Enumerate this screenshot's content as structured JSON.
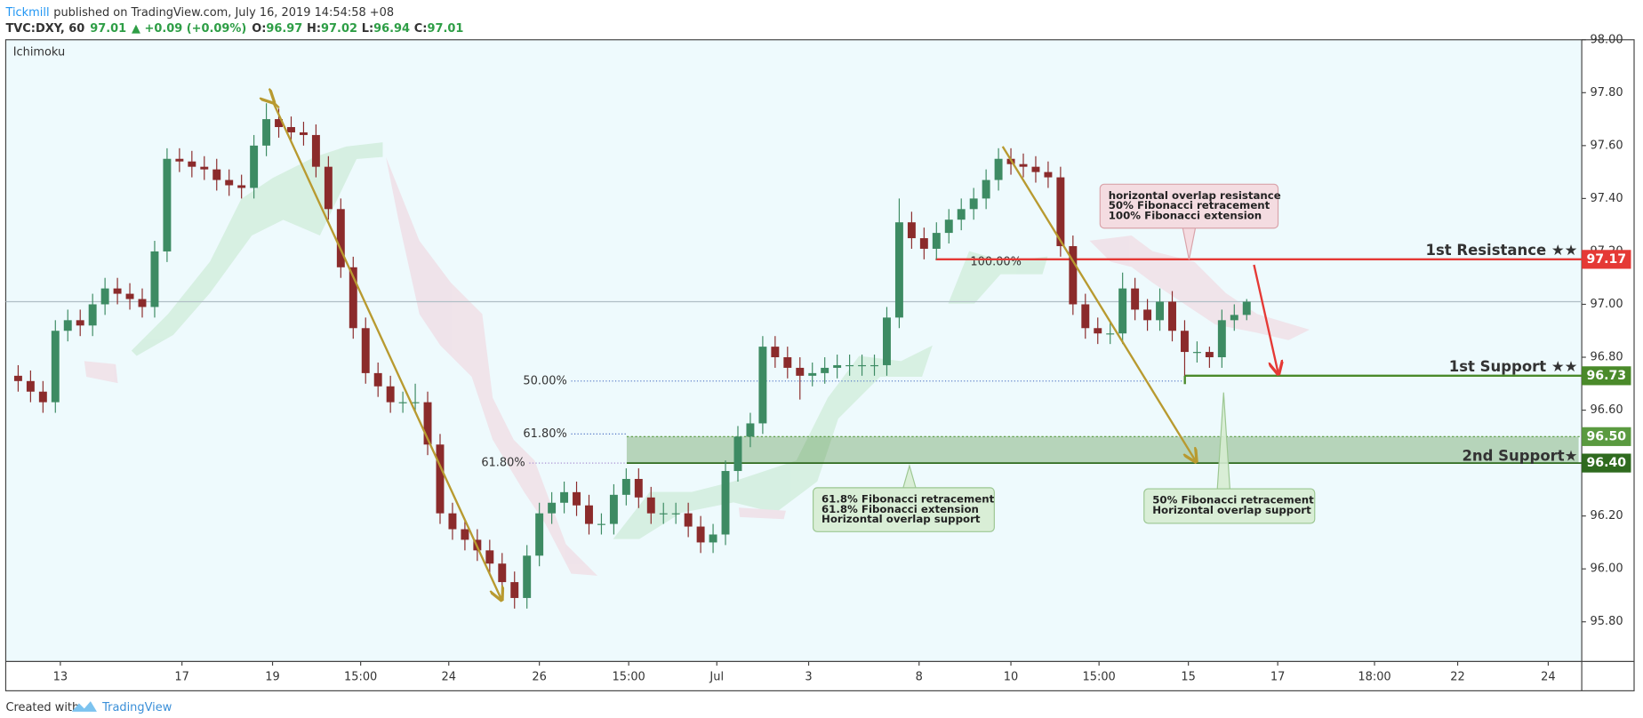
{
  "header": {
    "publisher": "Tickmill",
    "published": "published on TradingView.com, July 16, 2019 14:54:58 +08",
    "symbol": "TVC:DXY, 60",
    "price": "97.01",
    "change": "▲ +0.09 (+0.09%)",
    "ohlc": [
      {
        "key": "O:",
        "value": "96.97"
      },
      {
        "key": "H:",
        "value": "97.02"
      },
      {
        "key": "L:",
        "value": "96.94"
      },
      {
        "key": "C:",
        "value": "97.01"
      }
    ]
  },
  "indicator": "Ichimoku",
  "footer": {
    "created": "Created with",
    "brand": "TradingView"
  },
  "chart_data": {
    "type": "candlestick",
    "up_color": "#3d8b63",
    "down_color": "#8b2b2b",
    "open": [
      96.73,
      96.71,
      96.67,
      96.63,
      96.9,
      96.94,
      96.92,
      97.0,
      97.06,
      97.04,
      97.02,
      96.99,
      97.2,
      97.55,
      97.54,
      97.52,
      97.51,
      97.47,
      97.45,
      97.44,
      97.6,
      97.7,
      97.67,
      97.65,
      97.64,
      97.52,
      97.36,
      97.14,
      96.91,
      96.74,
      96.69,
      96.63,
      96.63,
      96.63,
      96.47,
      96.21,
      96.15,
      96.11,
      96.07,
      96.02,
      95.95,
      95.89,
      96.05,
      96.21,
      96.25,
      96.29,
      96.24,
      96.17,
      96.17,
      96.28,
      96.34,
      96.27,
      96.21,
      96.21,
      96.21,
      96.16,
      96.1,
      96.13,
      96.37,
      96.5,
      96.55,
      96.84,
      96.8,
      96.76,
      96.73,
      96.74,
      96.76,
      96.77,
      96.77,
      96.77,
      96.77,
      96.95,
      97.31,
      97.25,
      97.21,
      97.27,
      97.32,
      97.36,
      97.4,
      97.47,
      97.55,
      97.53,
      97.52,
      97.5,
      97.48,
      97.22,
      97.0,
      96.91,
      96.89,
      96.89,
      97.06,
      96.98,
      96.94,
      97.01,
      96.9,
      96.82,
      96.82,
      96.8,
      96.94,
      96.96
    ],
    "high": [
      96.77,
      96.75,
      96.71,
      96.94,
      96.98,
      96.98,
      97.04,
      97.1,
      97.1,
      97.08,
      97.06,
      97.24,
      97.59,
      97.59,
      97.58,
      97.56,
      97.55,
      97.51,
      97.49,
      97.64,
      97.76,
      97.74,
      97.71,
      97.69,
      97.68,
      97.56,
      97.4,
      97.18,
      96.95,
      96.78,
      96.73,
      96.67,
      96.7,
      96.67,
      96.51,
      96.25,
      96.19,
      96.15,
      96.11,
      96.06,
      95.99,
      96.09,
      96.25,
      96.29,
      96.33,
      96.33,
      96.28,
      96.21,
      96.32,
      96.38,
      96.38,
      96.31,
      96.25,
      96.25,
      96.25,
      96.2,
      96.17,
      96.41,
      96.54,
      96.59,
      96.88,
      96.88,
      96.84,
      96.8,
      96.78,
      96.8,
      96.81,
      96.81,
      96.81,
      96.81,
      96.99,
      97.4,
      97.35,
      97.29,
      97.31,
      97.36,
      97.4,
      97.44,
      97.51,
      97.59,
      97.59,
      97.57,
      97.56,
      97.54,
      97.52,
      97.26,
      97.04,
      96.95,
      96.93,
      97.12,
      97.1,
      97.02,
      97.06,
      97.05,
      96.94,
      96.86,
      96.84,
      96.98,
      97.0,
      97.02
    ],
    "low": [
      96.67,
      96.63,
      96.59,
      96.59,
      96.86,
      96.88,
      96.88,
      96.96,
      97.0,
      96.98,
      96.95,
      96.95,
      97.16,
      97.5,
      97.48,
      97.47,
      97.43,
      97.41,
      97.4,
      97.4,
      97.56,
      97.63,
      97.61,
      97.6,
      97.48,
      97.32,
      97.1,
      96.87,
      96.7,
      96.65,
      96.59,
      96.59,
      96.59,
      96.43,
      96.17,
      96.11,
      96.07,
      96.03,
      95.98,
      95.91,
      95.85,
      95.85,
      96.01,
      96.17,
      96.21,
      96.2,
      96.13,
      96.13,
      96.13,
      96.24,
      96.23,
      96.17,
      96.17,
      96.17,
      96.12,
      96.06,
      96.06,
      96.09,
      96.33,
      96.46,
      96.51,
      96.76,
      96.72,
      96.64,
      96.69,
      96.7,
      96.72,
      96.73,
      96.73,
      96.73,
      96.73,
      96.91,
      97.21,
      97.17,
      97.17,
      97.23,
      97.28,
      97.32,
      97.36,
      97.43,
      97.49,
      97.48,
      97.46,
      97.44,
      97.18,
      96.96,
      96.87,
      96.85,
      96.85,
      96.85,
      96.94,
      96.9,
      96.9,
      96.86,
      96.73,
      96.78,
      96.76,
      96.76,
      96.9,
      96.94
    ],
    "close": [
      96.71,
      96.67,
      96.63,
      96.9,
      96.94,
      96.92,
      97.0,
      97.06,
      97.04,
      97.02,
      96.99,
      97.2,
      97.55,
      97.54,
      97.52,
      97.51,
      97.47,
      97.45,
      97.44,
      97.6,
      97.7,
      97.67,
      97.65,
      97.64,
      97.52,
      97.36,
      97.14,
      96.91,
      96.74,
      96.69,
      96.63,
      96.63,
      96.63,
      96.47,
      96.21,
      96.15,
      96.11,
      96.07,
      96.02,
      95.95,
      95.89,
      96.05,
      96.21,
      96.25,
      96.29,
      96.24,
      96.17,
      96.17,
      96.28,
      96.34,
      96.27,
      96.21,
      96.21,
      96.21,
      96.16,
      96.1,
      96.13,
      96.37,
      96.5,
      96.55,
      96.84,
      96.8,
      96.76,
      96.73,
      96.74,
      96.76,
      96.77,
      96.77,
      96.77,
      96.77,
      96.95,
      97.31,
      97.25,
      97.21,
      97.27,
      97.32,
      97.36,
      97.4,
      97.47,
      97.55,
      97.53,
      97.52,
      97.5,
      97.48,
      97.22,
      97.0,
      96.91,
      96.89,
      96.89,
      97.06,
      96.98,
      96.94,
      97.01,
      96.9,
      96.82,
      96.82,
      96.8,
      96.94,
      96.96,
      97.01
    ],
    "xlim": [
      -1,
      126
    ],
    "xticks": [
      {
        "value": 3.4,
        "label": "13"
      },
      {
        "value": 13.2,
        "label": "17"
      },
      {
        "value": 20.5,
        "label": "19"
      },
      {
        "value": 27.6,
        "label": "15:00"
      },
      {
        "value": 34.7,
        "label": "24"
      },
      {
        "value": 42,
        "label": "26"
      },
      {
        "value": 49.2,
        "label": "15:00"
      },
      {
        "value": 56.3,
        "label": "Jul"
      },
      {
        "value": 63.7,
        "label": "3"
      },
      {
        "value": 72.6,
        "label": "8"
      },
      {
        "value": 80,
        "label": "10"
      },
      {
        "value": 87.1,
        "label": "15:00"
      },
      {
        "value": 94.3,
        "label": "15"
      },
      {
        "value": 101.5,
        "label": "17"
      },
      {
        "value": 109.3,
        "label": "18:00"
      },
      {
        "value": 116,
        "label": "22"
      },
      {
        "value": 123.3,
        "label": "24"
      }
    ],
    "ylim": [
      95.65,
      98.0
    ],
    "yticks": [
      {
        "value": 98.0,
        "label": "98.00"
      },
      {
        "value": 97.8,
        "label": "97.80"
      },
      {
        "value": 97.6,
        "label": "97.60"
      },
      {
        "value": 97.4,
        "label": "97.40"
      },
      {
        "value": 97.2,
        "label": "97.20"
      },
      {
        "value": 97.0,
        "label": "97.00"
      },
      {
        "value": 96.8,
        "label": "96.80"
      },
      {
        "value": 96.6,
        "label": "96.60"
      },
      {
        "value": 96.4,
        "label": "96.40"
      },
      {
        "value": 96.2,
        "label": "96.20"
      },
      {
        "value": 96.0,
        "label": "96.00"
      },
      {
        "value": 95.8,
        "label": "95.80"
      }
    ],
    "grid": false,
    "levels": [
      {
        "name": "1st Resistance ★★",
        "value": 97.17,
        "color": "#e53935"
      },
      {
        "name": "1st Support ★★",
        "value": 96.73,
        "color": "#4a8a2a"
      }
    ],
    "zone": {
      "name": "2nd Support★",
      "values": [
        96.5,
        96.4
      ],
      "value_labels": [
        "96.50",
        "96.40"
      ],
      "colors": [
        "#5a9a40",
        "#2f6b1f"
      ],
      "fill": "rgba(76,140,60,0.35)"
    },
    "fibs": [
      {
        "label": "50.00%",
        "value": 96.71,
        "color": "#4a6fc2"
      },
      {
        "label": "61.80%",
        "value": 96.51,
        "color": "#4a6fc2"
      },
      {
        "label": "61.80%",
        "value": 96.4,
        "color": "#a58bd0"
      },
      {
        "label": "100.00%",
        "value": 97.16,
        "color": "#b8a040"
      }
    ],
    "annotations": [
      {
        "lines": [
          "horizontal overlap resistance",
          "50% Fibonacci retracement",
          "100% Fibonacci extension"
        ]
      },
      {
        "lines": [
          "61.8% Fibonacci retracement",
          "61.8% Fibonacci extension",
          "Horizontal overlap support"
        ]
      },
      {
        "lines": [
          "50% Fibonacci retracement",
          "Horizontal overlap support"
        ]
      }
    ]
  }
}
